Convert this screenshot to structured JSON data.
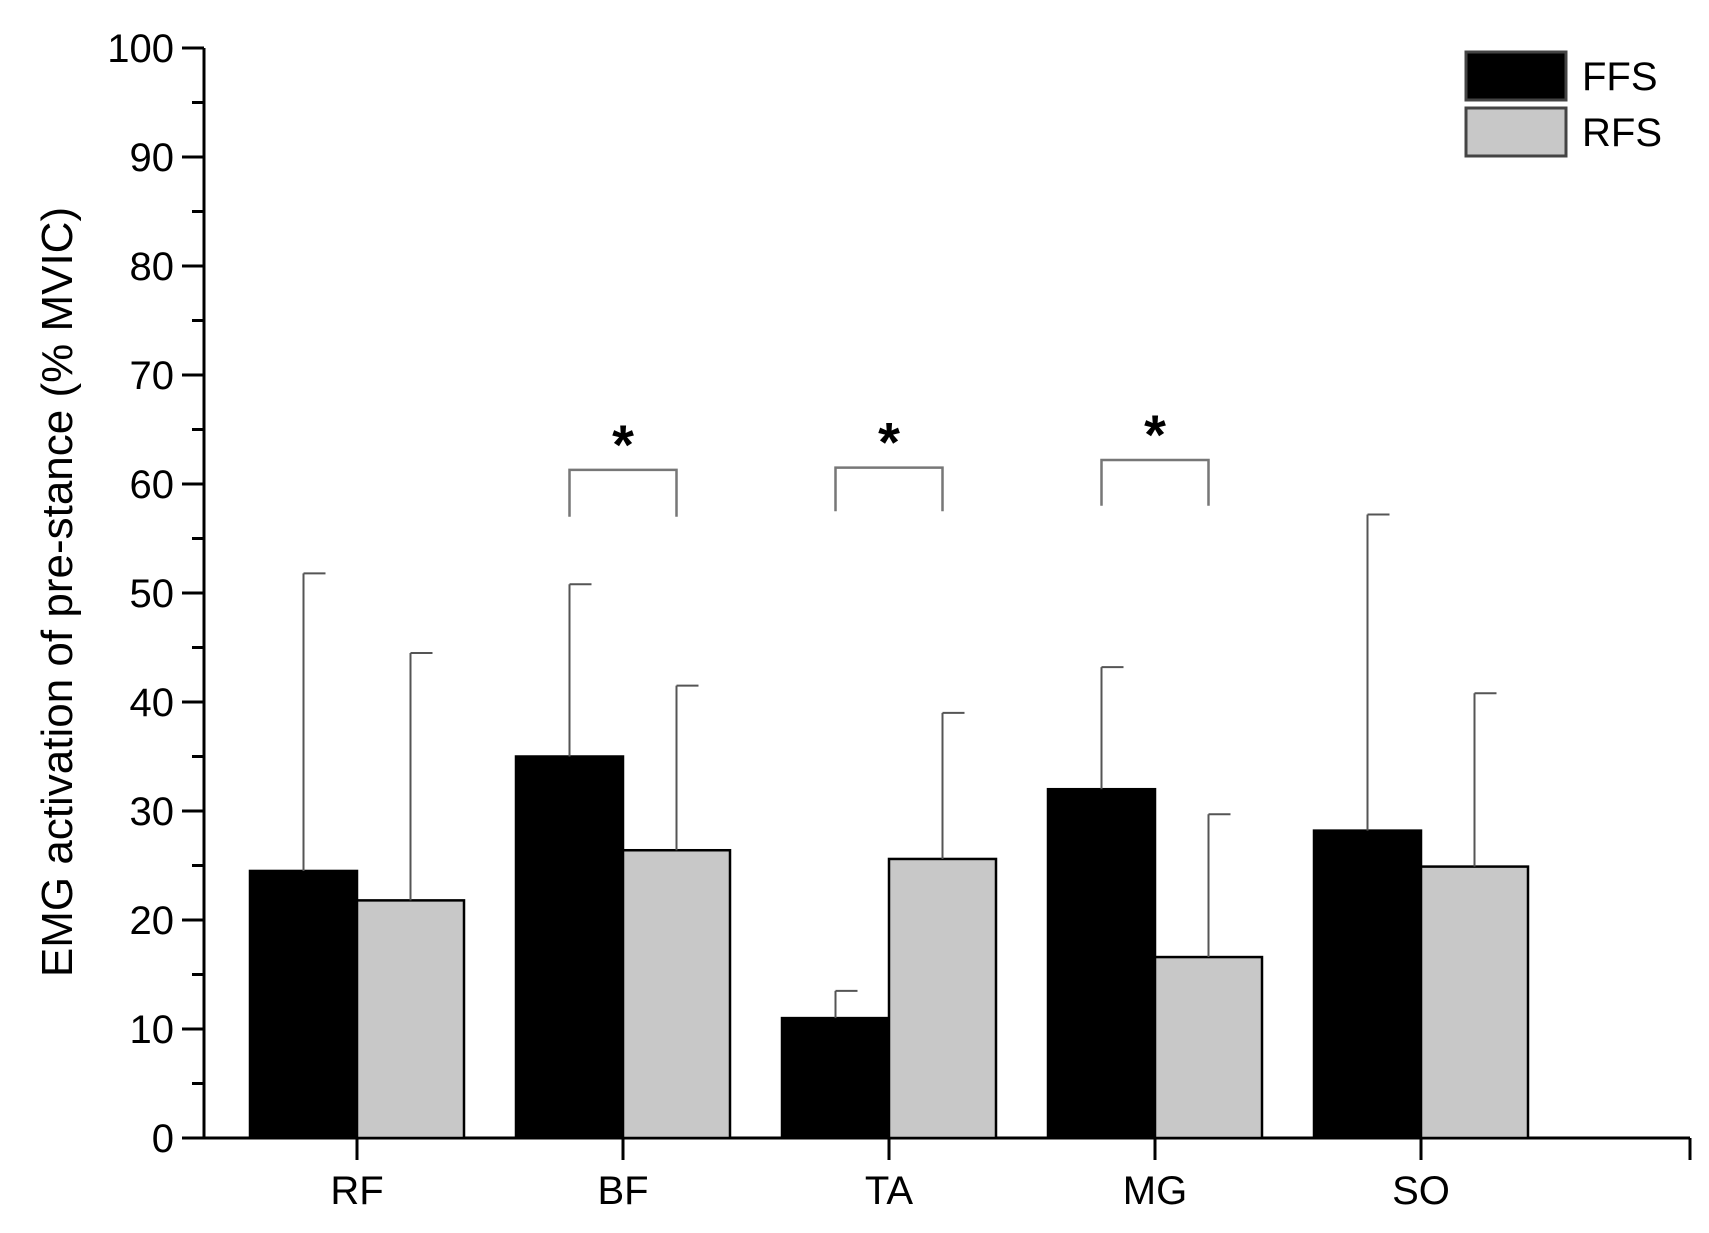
{
  "chart_data": {
    "type": "bar",
    "title": "",
    "xlabel": "",
    "ylabel": "EMG activation of pre-stance (% MVIC)",
    "categories": [
      "RF",
      "BF",
      "TA",
      "MG",
      "SO"
    ],
    "series": [
      {
        "name": "FFS",
        "color": "#000000",
        "values": [
          24.5,
          35,
          11,
          32,
          28.2
        ],
        "error_upper": [
          51.8,
          50.8,
          13.5,
          43.2,
          57.2
        ]
      },
      {
        "name": "RFS",
        "color": "#c8c8c8",
        "values": [
          21.8,
          26.4,
          25.6,
          16.6,
          24.9
        ],
        "error_upper": [
          44.5,
          41.5,
          39,
          29.7,
          40.8
        ]
      }
    ],
    "ylim": [
      0,
      100
    ],
    "yticks": [
      0,
      10,
      20,
      30,
      40,
      50,
      60,
      70,
      80,
      90,
      100
    ],
    "yminor_step": 5,
    "grid": false,
    "legend": {
      "placement": "top-right"
    },
    "significance": [
      {
        "category": "BF",
        "label": "*",
        "bracket_top": 61.3,
        "bracket_bottom": 57
      },
      {
        "category": "TA",
        "label": "*",
        "bracket_top": 61.5,
        "bracket_bottom": 57.5
      },
      {
        "category": "MG",
        "label": "*",
        "bracket_top": 62.2,
        "bracket_bottom": 58
      }
    ]
  }
}
